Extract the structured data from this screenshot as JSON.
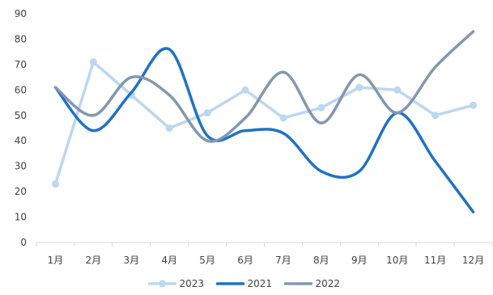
{
  "chart_data": {
    "type": "line",
    "title": "",
    "xlabel": "",
    "ylabel": "",
    "categories": [
      "1月",
      "2月",
      "3月",
      "4月",
      "5月",
      "6月",
      "7月",
      "8月",
      "9月",
      "10月",
      "11月",
      "12月"
    ],
    "ylim": [
      0,
      90
    ],
    "yticks": [
      0,
      10,
      20,
      30,
      40,
      50,
      60,
      70,
      80,
      90
    ],
    "grid": false,
    "legend_position": "bottom",
    "series": [
      {
        "name": "2023",
        "color": "#bdd7ee",
        "smooth": false,
        "markers": true,
        "values": [
          23,
          71,
          58,
          45,
          51,
          60,
          49,
          53,
          61,
          60,
          50,
          54
        ]
      },
      {
        "name": "2021",
        "color": "#1f72c4",
        "smooth": true,
        "markers": false,
        "values": [
          61,
          44,
          59,
          76,
          42,
          44,
          43,
          28,
          28,
          51,
          32,
          12
        ]
      },
      {
        "name": "2022",
        "color": "#8497b0",
        "smooth": true,
        "markers": false,
        "values": [
          61,
          50,
          65,
          58,
          40,
          49,
          67,
          47,
          66,
          51,
          69,
          83
        ]
      }
    ]
  }
}
